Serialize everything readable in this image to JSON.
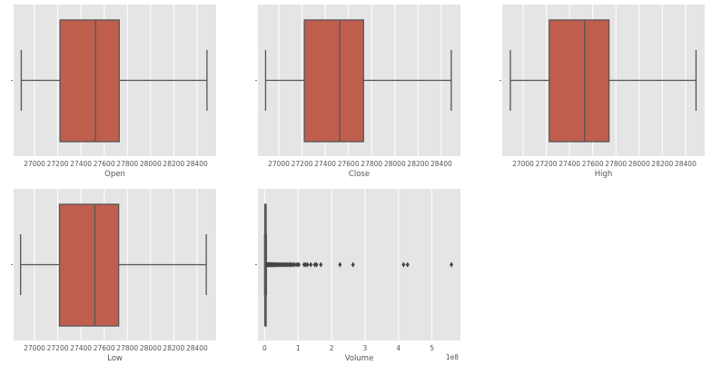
{
  "chart_data": [
    {
      "type": "box",
      "xlabel": "Open",
      "xlim": [
        26820,
        28565
      ],
      "ticks": [
        27000,
        27200,
        27400,
        27600,
        27800,
        28000,
        28200,
        28400
      ],
      "tick_labels": [
        "27000",
        "27200",
        "27400",
        "27600",
        "27800",
        "28000",
        "28200",
        "28400"
      ],
      "whisker_low": 26886,
      "q1": 27220,
      "median": 27525,
      "q3": 27730,
      "whisker_high": 28486,
      "outliers": []
    },
    {
      "type": "box",
      "xlabel": "Close",
      "xlim": [
        26820,
        28565
      ],
      "ticks": [
        27000,
        27200,
        27400,
        27600,
        27800,
        28000,
        28200,
        28400
      ],
      "tick_labels": [
        "27000",
        "27200",
        "27400",
        "27600",
        "27800",
        "28000",
        "28200",
        "28400"
      ],
      "whisker_low": 26886,
      "q1": 27220,
      "median": 27525,
      "q3": 27730,
      "whisker_high": 28486,
      "outliers": []
    },
    {
      "type": "box",
      "xlabel": "High",
      "xlim": [
        26820,
        28565
      ],
      "ticks": [
        27000,
        27200,
        27400,
        27600,
        27800,
        28000,
        28200,
        28400
      ],
      "tick_labels": [
        "27000",
        "27200",
        "27400",
        "27600",
        "27800",
        "28000",
        "28200",
        "28400"
      ],
      "whisker_low": 26890,
      "q1": 27225,
      "median": 27530,
      "q3": 27740,
      "whisker_high": 28490,
      "outliers": []
    },
    {
      "type": "box",
      "xlabel": "Low",
      "xlim": [
        26820,
        28565
      ],
      "ticks": [
        27000,
        27200,
        27400,
        27600,
        27800,
        28000,
        28200,
        28400
      ],
      "tick_labels": [
        "27000",
        "27200",
        "27400",
        "27600",
        "27800",
        "28000",
        "28200",
        "28400"
      ],
      "whisker_low": 26880,
      "q1": 27215,
      "median": 27520,
      "q3": 27725,
      "whisker_high": 28480,
      "outliers": []
    },
    {
      "type": "box",
      "xlabel": "Volume",
      "offset_label": "1e8",
      "xlim": [
        -0.2,
        5.85
      ],
      "ticks": [
        0,
        1,
        2,
        3,
        4,
        5
      ],
      "tick_labels": [
        "0",
        "1",
        "2",
        "3",
        "4",
        "5"
      ],
      "whisker_low": 0,
      "q1": 0.005,
      "median": 0.012,
      "q3": 0.025,
      "whisker_high": 0.055,
      "outliers": [
        0.06,
        0.08,
        0.1,
        0.12,
        0.14,
        0.16,
        0.18,
        0.2,
        0.22,
        0.25,
        0.28,
        0.3,
        0.33,
        0.36,
        0.4,
        0.44,
        0.48,
        0.52,
        0.56,
        0.6,
        0.64,
        0.68,
        0.72,
        0.76,
        0.8,
        0.85,
        0.9,
        0.97,
        1.02,
        1.18,
        1.22,
        1.28,
        1.38,
        1.5,
        1.55,
        1.68,
        2.25,
        2.64,
        4.15,
        4.27,
        5.58
      ]
    }
  ],
  "colors": {
    "box": "#c05e4d",
    "background": "#e5e5e5",
    "grid": "#ffffff",
    "line": "#555555"
  }
}
